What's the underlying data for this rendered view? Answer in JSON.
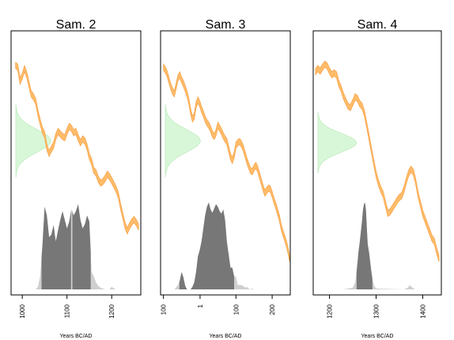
{
  "chart_data": [
    {
      "type": "area",
      "title": "Sam. 2",
      "xlabel": "Years BC/AD",
      "xlim": [
        975,
        1265
      ],
      "x_ticks": [
        1000,
        1100,
        1200
      ],
      "x_tick_labels": [
        "1000",
        "1100",
        "1200"
      ],
      "calibration_curve_band": [
        [
          985,
          55
        ],
        [
          990,
          58
        ],
        [
          995,
          80
        ],
        [
          1000,
          72
        ],
        [
          1005,
          60
        ],
        [
          1010,
          70
        ],
        [
          1015,
          85
        ],
        [
          1020,
          100
        ],
        [
          1025,
          105
        ],
        [
          1030,
          112
        ],
        [
          1035,
          130
        ],
        [
          1040,
          145
        ],
        [
          1045,
          158
        ],
        [
          1050,
          165
        ],
        [
          1055,
          185
        ],
        [
          1060,
          195
        ],
        [
          1065,
          188
        ],
        [
          1070,
          182
        ],
        [
          1075,
          168
        ],
        [
          1080,
          160
        ],
        [
          1085,
          164
        ],
        [
          1090,
          168
        ],
        [
          1095,
          170
        ],
        [
          1100,
          160
        ],
        [
          1105,
          152
        ],
        [
          1110,
          155
        ],
        [
          1115,
          162
        ],
        [
          1120,
          160
        ],
        [
          1125,
          170
        ],
        [
          1130,
          178
        ],
        [
          1135,
          172
        ],
        [
          1140,
          175
        ],
        [
          1145,
          185
        ],
        [
          1150,
          200
        ],
        [
          1155,
          208
        ],
        [
          1160,
          222
        ],
        [
          1165,
          226
        ],
        [
          1170,
          236
        ],
        [
          1175,
          242
        ],
        [
          1180,
          240
        ],
        [
          1185,
          235
        ],
        [
          1190,
          228
        ],
        [
          1195,
          232
        ],
        [
          1200,
          238
        ],
        [
          1205,
          245
        ],
        [
          1210,
          252
        ],
        [
          1215,
          262
        ],
        [
          1220,
          280
        ],
        [
          1225,
          295
        ],
        [
          1230,
          310
        ],
        [
          1235,
          318
        ],
        [
          1240,
          310
        ],
        [
          1245,
          304
        ],
        [
          1250,
          300
        ],
        [
          1255,
          305
        ],
        [
          1260,
          312
        ]
      ],
      "radiocarbon_density": {
        "mu": 175,
        "sigma": 18,
        "peak_fraction": 0.27
      },
      "calibrated_density_x": [
        1030,
        1035,
        1040,
        1045,
        1050,
        1055,
        1060,
        1065,
        1070,
        1075,
        1080,
        1085,
        1090,
        1095,
        1100,
        1105,
        1110,
        1115,
        1120,
        1125,
        1130,
        1135,
        1140,
        1145,
        1150,
        1155,
        1160,
        1165,
        1170,
        1175,
        1180,
        1185,
        1190,
        1195,
        1200,
        1205,
        1210
      ],
      "calibrated_density_y": [
        0.0,
        0.03,
        0.15,
        0.5,
        0.95,
        0.85,
        0.6,
        0.63,
        0.74,
        0.55,
        0.68,
        0.8,
        0.9,
        0.8,
        0.7,
        0.78,
        0.93,
        0.85,
        0.9,
        0.98,
        0.8,
        0.7,
        0.75,
        0.85,
        0.78,
        0.2,
        0.15,
        0.08,
        0.04,
        0.02,
        0.01,
        0.0,
        0.0,
        0.0,
        0.03,
        0.01,
        0.0
      ],
      "hpd_range": [
        1043,
        1153
      ],
      "hpd_gap": [
        1109,
        1112
      ]
    },
    {
      "type": "area",
      "title": "Sam. 3",
      "xlabel": "Years BC/AD",
      "xlim": [
        -108,
        250
      ],
      "x_ticks": [
        -100,
        1,
        100,
        200
      ],
      "x_tick_labels": [
        "100",
        "1",
        "100",
        "200"
      ],
      "calibration_curve_band": [
        [
          -100,
          58
        ],
        [
          -95,
          62
        ],
        [
          -90,
          68
        ],
        [
          -85,
          78
        ],
        [
          -80,
          88
        ],
        [
          -75,
          96
        ],
        [
          -70,
          100
        ],
        [
          -65,
          88
        ],
        [
          -60,
          75
        ],
        [
          -55,
          70
        ],
        [
          -50,
          78
        ],
        [
          -45,
          84
        ],
        [
          -40,
          92
        ],
        [
          -35,
          100
        ],
        [
          -30,
          112
        ],
        [
          -25,
          128
        ],
        [
          -20,
          140
        ],
        [
          -15,
          136
        ],
        [
          -10,
          118
        ],
        [
          -5,
          110
        ],
        [
          0,
          116
        ],
        [
          5,
          125
        ],
        [
          10,
          132
        ],
        [
          15,
          140
        ],
        [
          20,
          146
        ],
        [
          25,
          150
        ],
        [
          30,
          156
        ],
        [
          35,
          164
        ],
        [
          40,
          168
        ],
        [
          45,
          162
        ],
        [
          50,
          150
        ],
        [
          55,
          155
        ],
        [
          60,
          160
        ],
        [
          65,
          167
        ],
        [
          70,
          172
        ],
        [
          75,
          176
        ],
        [
          80,
          188
        ],
        [
          85,
          200
        ],
        [
          90,
          206
        ],
        [
          95,
          198
        ],
        [
          100,
          182
        ],
        [
          105,
          178
        ],
        [
          110,
          176
        ],
        [
          115,
          180
        ],
        [
          120,
          186
        ],
        [
          125,
          196
        ],
        [
          130,
          206
        ],
        [
          135,
          214
        ],
        [
          140,
          222
        ],
        [
          145,
          224
        ],
        [
          150,
          218
        ],
        [
          155,
          214
        ],
        [
          160,
          220
        ],
        [
          165,
          230
        ],
        [
          170,
          240
        ],
        [
          175,
          250
        ],
        [
          180,
          258
        ],
        [
          185,
          254
        ],
        [
          190,
          250
        ],
        [
          195,
          252
        ],
        [
          200,
          260
        ],
        [
          205,
          270
        ],
        [
          210,
          278
        ],
        [
          215,
          288
        ],
        [
          220,
          298
        ],
        [
          225,
          312
        ],
        [
          230,
          322
        ],
        [
          235,
          330
        ],
        [
          240,
          340
        ],
        [
          245,
          352
        ],
        [
          248,
          362
        ]
      ],
      "radiocarbon_density": {
        "mu": 175,
        "sigma": 18,
        "peak_fraction": 0.27
      },
      "calibrated_density_x": [
        -70,
        -60,
        -55,
        -50,
        -45,
        -40,
        -35,
        -30,
        -25,
        -20,
        -15,
        -10,
        -5,
        0,
        5,
        10,
        15,
        20,
        25,
        30,
        35,
        40,
        45,
        50,
        55,
        60,
        65,
        70,
        75,
        80,
        85,
        90,
        95,
        100,
        105,
        110,
        115,
        120,
        125,
        130,
        135,
        140,
        145,
        150
      ],
      "calibrated_density_y": [
        0.0,
        0.05,
        0.1,
        0.2,
        0.14,
        0.04,
        0.0,
        0.0,
        0.0,
        0.03,
        0.08,
        0.2,
        0.38,
        0.45,
        0.55,
        0.7,
        0.85,
        0.95,
        1.0,
        0.92,
        0.88,
        0.93,
        0.98,
        0.95,
        0.9,
        0.87,
        0.92,
        0.8,
        0.55,
        0.4,
        0.25,
        0.25,
        0.15,
        0.15,
        0.05,
        0.05,
        0.05,
        0.04,
        0.02,
        0.03,
        0.01,
        0.0,
        0.01,
        0.0
      ],
      "hpd_range": [
        -56,
        95
      ]
    },
    {
      "type": "area",
      "title": "Sam. 4",
      "xlabel": "Years BC/AD",
      "xlim": [
        1165,
        1440
      ],
      "x_ticks": [
        1200,
        1300,
        1400
      ],
      "x_tick_labels": [
        "1200",
        "1300",
        "1400"
      ],
      "calibration_curve_band": [
        [
          1170,
          65
        ],
        [
          1175,
          60
        ],
        [
          1180,
          64
        ],
        [
          1185,
          58
        ],
        [
          1190,
          53
        ],
        [
          1195,
          56
        ],
        [
          1200,
          64
        ],
        [
          1205,
          70
        ],
        [
          1210,
          67
        ],
        [
          1215,
          70
        ],
        [
          1220,
          84
        ],
        [
          1225,
          92
        ],
        [
          1230,
          104
        ],
        [
          1235,
          112
        ],
        [
          1240,
          120
        ],
        [
          1245,
          122
        ],
        [
          1250,
          114
        ],
        [
          1255,
          105
        ],
        [
          1260,
          108
        ],
        [
          1265,
          116
        ],
        [
          1270,
          120
        ],
        [
          1275,
          132
        ],
        [
          1280,
          150
        ],
        [
          1285,
          170
        ],
        [
          1290,
          190
        ],
        [
          1295,
          210
        ],
        [
          1300,
          228
        ],
        [
          1305,
          242
        ],
        [
          1310,
          252
        ],
        [
          1315,
          260
        ],
        [
          1320,
          275
        ],
        [
          1325,
          290
        ],
        [
          1330,
          288
        ],
        [
          1335,
          282
        ],
        [
          1340,
          276
        ],
        [
          1345,
          270
        ],
        [
          1350,
          265
        ],
        [
          1355,
          262
        ],
        [
          1360,
          252
        ],
        [
          1365,
          238
        ],
        [
          1370,
          226
        ],
        [
          1375,
          220
        ],
        [
          1380,
          225
        ],
        [
          1385,
          240
        ],
        [
          1390,
          260
        ],
        [
          1395,
          275
        ],
        [
          1400,
          290
        ],
        [
          1405,
          300
        ],
        [
          1410,
          310
        ],
        [
          1415,
          320
        ],
        [
          1420,
          330
        ],
        [
          1425,
          335
        ],
        [
          1430,
          350
        ],
        [
          1435,
          362
        ]
      ],
      "radiocarbon_density": {
        "mu": 178,
        "sigma": 15,
        "peak_fraction": 0.3
      },
      "calibrated_density_x": [
        1230,
        1240,
        1250,
        1255,
        1258,
        1262,
        1265,
        1268,
        1270,
        1272,
        1274,
        1276,
        1278,
        1280,
        1282,
        1285,
        1288,
        1292,
        1296,
        1300,
        1360,
        1368,
        1372,
        1376,
        1380,
        1385
      ],
      "calibrated_density_y": [
        0.0,
        0.01,
        0.02,
        0.08,
        0.2,
        0.42,
        0.55,
        0.7,
        0.8,
        0.92,
        0.98,
        1.0,
        0.92,
        0.72,
        0.52,
        0.42,
        0.28,
        0.12,
        0.04,
        0.01,
        0.0,
        0.02,
        0.05,
        0.03,
        0.01,
        0.0
      ],
      "hpd_range": [
        1258,
        1292
      ]
    }
  ],
  "colors": {
    "curve_band": "#ffbc6a",
    "curve_edge": "#f6a043",
    "radiocarbon_fill": "#d8f7d8",
    "radiocarbon_edge": "#c1ebc1",
    "density_light": "#cfcfcf",
    "density_dark": "#777777",
    "frame": "#000000"
  }
}
